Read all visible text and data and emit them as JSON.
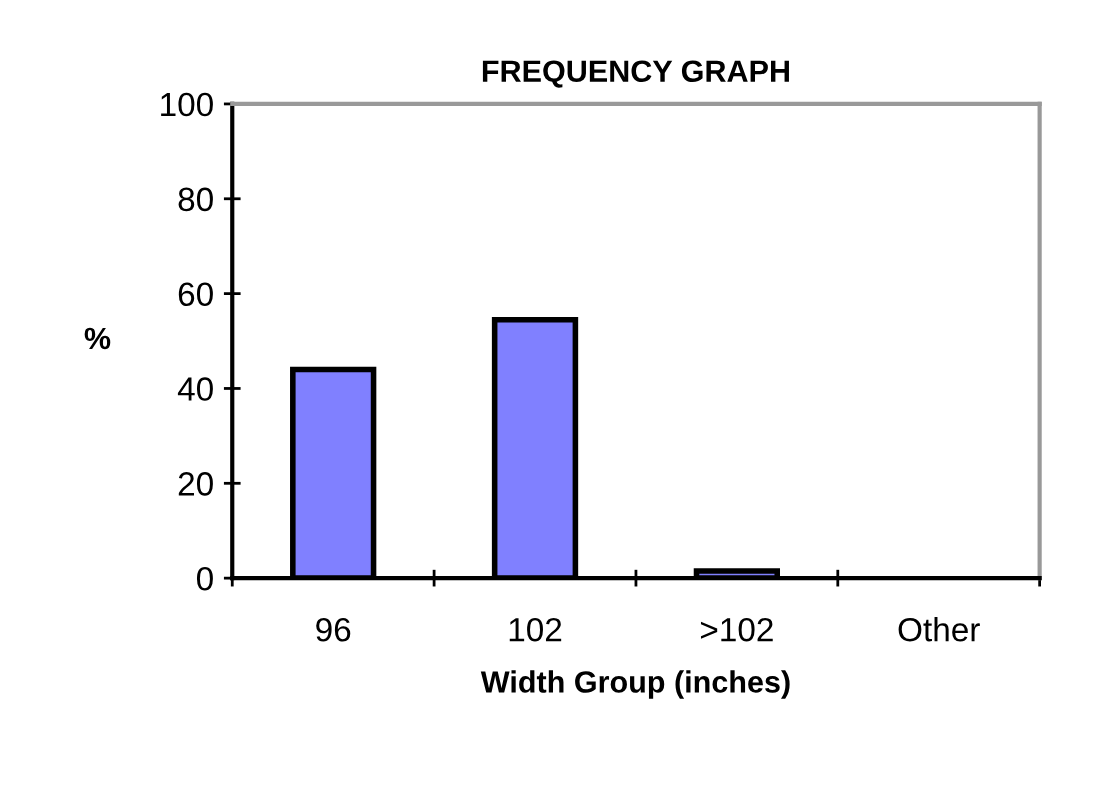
{
  "chart_data": {
    "type": "bar",
    "title": "FREQUENCY GRAPH",
    "xlabel": "Width Group (inches)",
    "ylabel": "%",
    "categories": [
      "96",
      "102",
      ">102",
      "Other"
    ],
    "values": [
      44,
      54.5,
      1.5,
      0
    ],
    "color": "#8080ff",
    "ylim": [
      0,
      100
    ],
    "yticks": [
      0,
      20,
      40,
      60,
      80,
      100
    ],
    "grid": false
  }
}
